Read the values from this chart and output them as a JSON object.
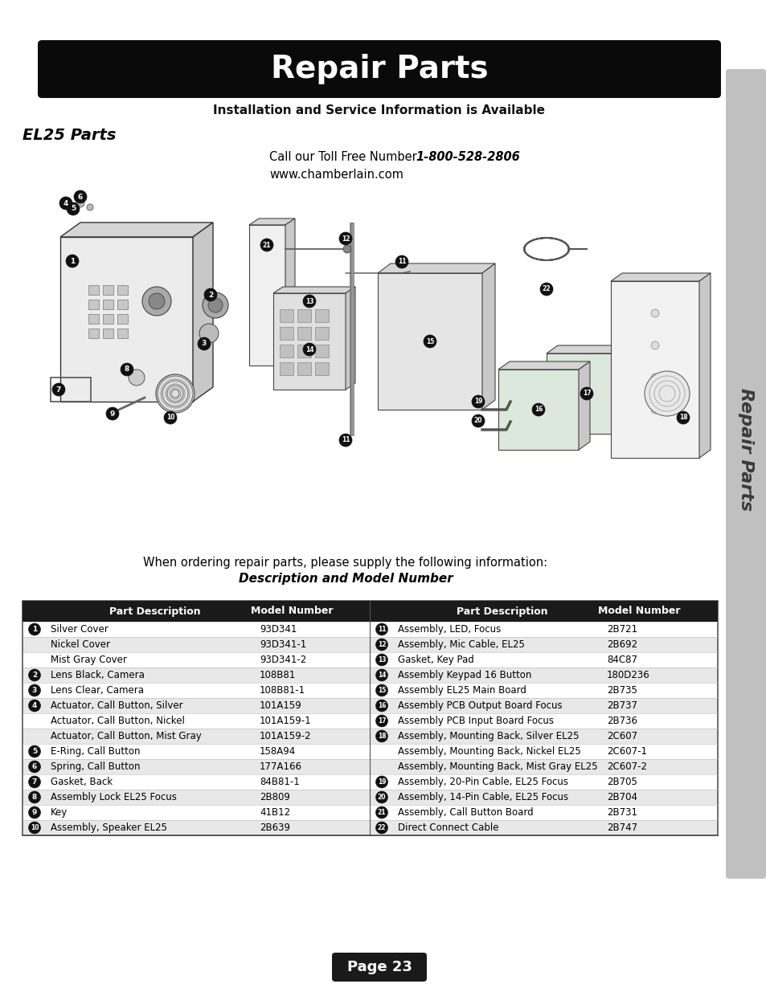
{
  "title": "Repair Parts",
  "subtitle": "Installation and Service Information is Available",
  "section_title": "EL25 Parts",
  "call_text_normal": "Call our Toll Free Number ",
  "call_text_bold": "1-800-528-2806",
  "website": "www.chamberlain.com",
  "ordering_text": "When ordering repair parts, please supply the following information:",
  "ordering_bold": "Description and Model Number",
  "page_label": "Page 23",
  "table_header": [
    "Part Description",
    "Model Number",
    "Part Description",
    "Model Number"
  ],
  "table_rows_left": [
    [
      "1",
      "Silver Cover",
      "93D341"
    ],
    [
      "",
      "Nickel Cover",
      "93D341-1"
    ],
    [
      "",
      "Mist Gray Cover",
      "93D341-2"
    ],
    [
      "2",
      "Lens Black, Camera",
      "108B81"
    ],
    [
      "3",
      "Lens Clear, Camera",
      "108B81-1"
    ],
    [
      "4",
      "Actuator, Call Button, Silver",
      "101A159"
    ],
    [
      "",
      "Actuator, Call Button, Nickel",
      "101A159-1"
    ],
    [
      "",
      "Actuator, Call Button, Mist Gray",
      "101A159-2"
    ],
    [
      "5",
      "E-Ring, Call Button",
      "158A94"
    ],
    [
      "6",
      "Spring, Call Button",
      "177A166"
    ],
    [
      "7",
      "Gasket, Back",
      "84B81-1"
    ],
    [
      "8",
      "Assembly Lock EL25 Focus",
      "2B809"
    ],
    [
      "9",
      "Key",
      "41B12"
    ],
    [
      "10",
      "Assembly, Speaker EL25",
      "2B639"
    ]
  ],
  "table_rows_right": [
    [
      "11",
      "Assembly, LED, Focus",
      "2B721"
    ],
    [
      "12",
      "Assembly, Mic Cable, EL25",
      "2B692"
    ],
    [
      "13",
      "Gasket, Key Pad",
      "84C87"
    ],
    [
      "14",
      "Assembly Keypad 16 Button",
      "180D236"
    ],
    [
      "15",
      "Assembly EL25 Main Board",
      "2B735"
    ],
    [
      "16",
      "Assembly PCB Output Board Focus",
      "2B737"
    ],
    [
      "17",
      "Assembly PCB Input Board Focus",
      "2B736"
    ],
    [
      "18",
      "Assembly, Mounting Back, Silver EL25",
      "2C607"
    ],
    [
      "",
      "Assembly, Mounting Back, Nickel EL25",
      "2C607-1"
    ],
    [
      "",
      "Assembly, Mounting Back, Mist Gray EL25",
      "2C607-2"
    ],
    [
      "19",
      "Assembly, 20-Pin Cable, EL25 Focus",
      "2B705"
    ],
    [
      "20",
      "Assembly, 14-Pin Cable, EL25 Focus",
      "2B704"
    ],
    [
      "21",
      "Assembly, Call Button Board",
      "2B731"
    ],
    [
      "22",
      "Direct Connect Cable",
      "2B747"
    ]
  ],
  "bg_color": "#ffffff",
  "title_bg": "#0a0a0a",
  "title_fg": "#ffffff",
  "table_header_bg": "#1a1a1a",
  "table_header_fg": "#ffffff",
  "table_row_alt": "#e8e8e8",
  "table_border": "#555555",
  "sidebar_color": "#c0c0c0",
  "page_badge_bg": "#1a1a1a",
  "page_badge_fg": "#ffffff",
  "sidebar_text": "Repair Parts"
}
